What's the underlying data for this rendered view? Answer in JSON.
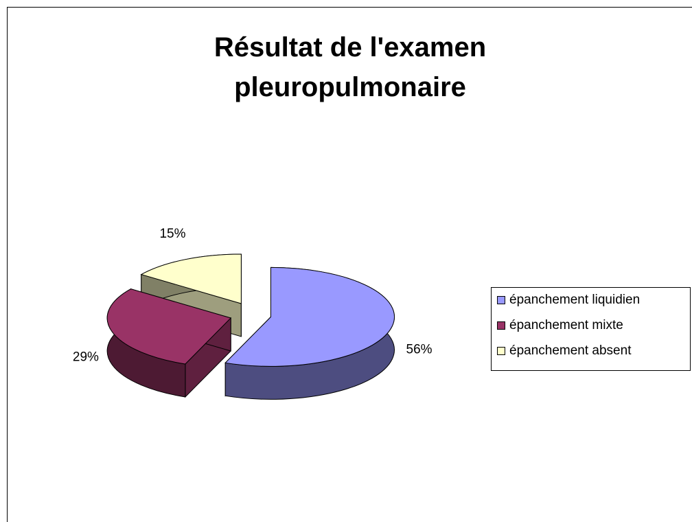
{
  "chart_data": {
    "type": "pie3d",
    "title": "Résultat de l'examen pleuropulmonaire",
    "categories": [
      "épanchement liquidien",
      "épanchement mixte",
      "épanchement absent"
    ],
    "values": [
      56,
      29,
      15
    ],
    "value_labels": [
      "56%",
      "29%",
      "15%"
    ],
    "colors": [
      "#9999ff",
      "#993366",
      "#ffffcc"
    ],
    "legend": "right"
  }
}
